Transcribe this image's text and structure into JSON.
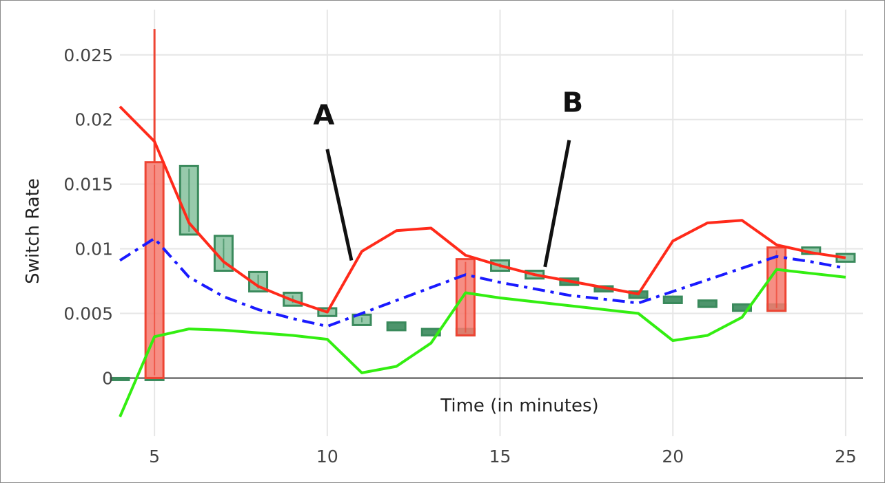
{
  "chart_data": {
    "type": "line",
    "title": "",
    "xlabel": "Time (in minutes)",
    "ylabel": "Switch Rate",
    "xlim": [
      4,
      25.5
    ],
    "ylim": [
      -0.0045,
      0.0285
    ],
    "grid": true,
    "x_ticks": [
      5,
      10,
      15,
      20,
      25
    ],
    "y_ticks": [
      0,
      0.005,
      0.01,
      0.015,
      0.02,
      0.025
    ],
    "x_tick_labels": [
      "5",
      "10",
      "15",
      "20",
      "25"
    ],
    "y_tick_labels": [
      "0",
      "0.005",
      "0.01",
      "0.015",
      "0.02",
      "0.025"
    ],
    "series": [
      {
        "kind": "line",
        "color": "#ff2a1a",
        "style": "solid",
        "x": [
          4,
          5,
          6,
          7,
          8,
          9,
          10,
          11,
          12,
          13,
          14,
          15,
          16,
          17,
          18,
          19,
          20,
          21,
          22,
          23,
          24,
          25
        ],
        "y": [
          0.021,
          0.0183,
          0.012,
          0.009,
          0.0071,
          0.006,
          0.0051,
          0.0098,
          0.0114,
          0.0116,
          0.0095,
          0.0087,
          0.008,
          0.0075,
          0.007,
          0.0065,
          0.0106,
          0.012,
          0.0122,
          0.0103,
          0.0097,
          0.0093
        ]
      },
      {
        "kind": "line",
        "color": "#1a1aff",
        "style": "dash-dot",
        "x": [
          4,
          5,
          6,
          7,
          8,
          9,
          10,
          11,
          12,
          13,
          14,
          15,
          16,
          17,
          18,
          19,
          20,
          21,
          22,
          23,
          24,
          25
        ],
        "y": [
          0.0091,
          0.0108,
          0.0078,
          0.0063,
          0.0053,
          0.0046,
          0.004,
          0.005,
          0.006,
          0.007,
          0.008,
          0.0074,
          0.0069,
          0.0064,
          0.0061,
          0.0058,
          0.0067,
          0.0076,
          0.0085,
          0.0094,
          0.009,
          0.0085
        ]
      },
      {
        "kind": "line",
        "color": "#33ee11",
        "style": "solid",
        "x": [
          4,
          5,
          6,
          7,
          8,
          9,
          10,
          11,
          12,
          13,
          14,
          15,
          16,
          17,
          18,
          19,
          20,
          21,
          22,
          23,
          24,
          25
        ],
        "y": [
          -0.003,
          0.0032,
          0.0038,
          0.0037,
          0.0035,
          0.0033,
          0.003,
          0.0004,
          0.0009,
          0.0027,
          0.0066,
          0.0062,
          0.0059,
          0.0056,
          0.0053,
          0.005,
          0.0029,
          0.0033,
          0.0047,
          0.0084,
          0.0081,
          0.0078
        ]
      },
      {
        "kind": "candle",
        "color": "#3a8a5c",
        "x": [
          4,
          5,
          6,
          7,
          8,
          9,
          10,
          11,
          12,
          13,
          14,
          15,
          16,
          17,
          18,
          19,
          20,
          21,
          22,
          23,
          24,
          25
        ],
        "low": [
          0,
          0,
          0.0111,
          0.0083,
          0.0067,
          0.0056,
          0.0048,
          0.0041,
          0.0037,
          0.0033,
          0.0033,
          0.0083,
          0.0077,
          0.0072,
          0.0067,
          0.0062,
          0.0058,
          0.0055,
          0.0052,
          0.0052,
          0.0096,
          0.009
        ],
        "high": [
          0,
          0,
          0.0164,
          0.011,
          0.0082,
          0.0066,
          0.0054,
          0.0049,
          0.0043,
          0.0038,
          0.0038,
          0.0091,
          0.0083,
          0.0077,
          0.0071,
          0.0067,
          0.0063,
          0.006,
          0.0057,
          0.0057,
          0.0101,
          0.0096
        ],
        "up": [
          false,
          false,
          true,
          true,
          true,
          true,
          true,
          true,
          false,
          false,
          false,
          true,
          true,
          false,
          false,
          false,
          false,
          false,
          false,
          false,
          true,
          true
        ]
      },
      {
        "kind": "candle",
        "color": "#ee4433",
        "x": [
          5,
          14,
          23
        ],
        "low": [
          0,
          0.0033,
          0.0052
        ],
        "high": [
          0.0167,
          0.0092,
          0.0101
        ],
        "whisker_high": [
          0.027,
          null,
          null
        ]
      }
    ],
    "annotations": [
      {
        "text": "A",
        "text_x": 9.9,
        "text_y": 0.0196,
        "arrow_from_x": 10.0,
        "arrow_from_y": 0.0177,
        "arrow_to_x": 10.7,
        "arrow_to_y": 0.0091
      },
      {
        "text": "B",
        "text_x": 17.1,
        "text_y": 0.0206,
        "arrow_from_x": 17.0,
        "arrow_from_y": 0.0184,
        "arrow_to_x": 16.3,
        "arrow_to_y": 0.0086
      }
    ]
  }
}
